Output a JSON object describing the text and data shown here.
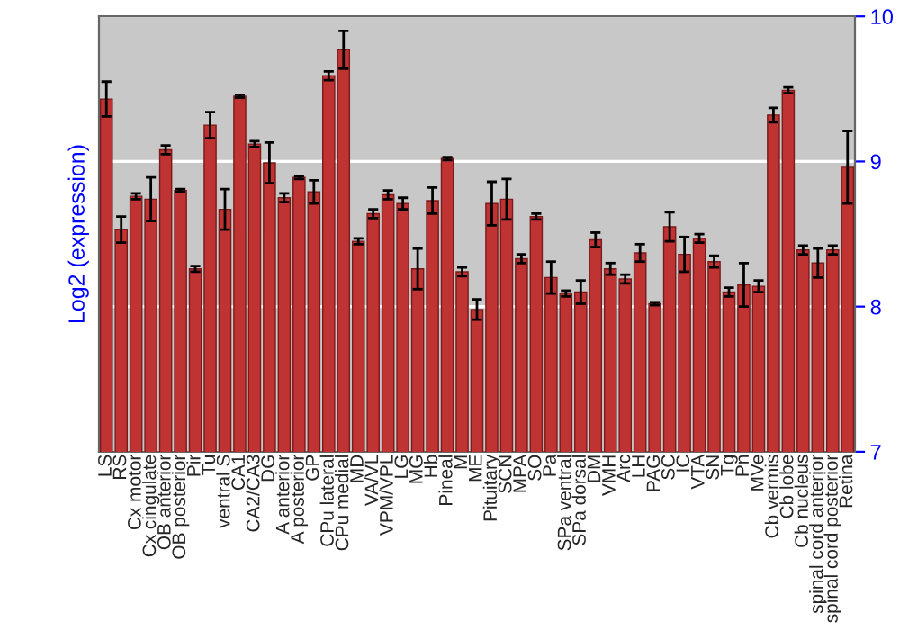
{
  "chart_data": {
    "type": "bar",
    "ylabel": "Log2 (expression)",
    "categories": [
      "LS",
      "RS",
      "Cx motor",
      "Cx cingulate",
      "OB anterior",
      "OB posterior",
      "Pir",
      "Tu",
      "ventral S",
      "CA1",
      "CA2/CA3",
      "DG",
      "A anterior",
      "A posterior",
      "GP",
      "CPu lateral",
      "CPu medial",
      "MD",
      "VA/VL",
      "VPM/VPL",
      "LG",
      "MG",
      "Hb",
      "Pineal",
      "M",
      "ME",
      "Pituitary",
      "SCN",
      "MPA",
      "SO",
      "Pa",
      "SPa ventral",
      "SPa dorsal",
      "DM",
      "VMH",
      "Arc",
      "LH",
      "PAG",
      "SC",
      "IC",
      "VTA",
      "SN",
      "Tg",
      "Pn",
      "MVe",
      "Cb vermis",
      "Cb lobe",
      "Cb nucleus",
      "spinal cord anterior",
      "spinal cord posterior",
      "Retina"
    ],
    "values": [
      9.43,
      8.53,
      8.76,
      8.74,
      9.08,
      8.8,
      8.26,
      9.25,
      8.67,
      9.45,
      9.12,
      8.99,
      8.75,
      8.89,
      8.79,
      9.59,
      9.77,
      8.45,
      8.64,
      8.77,
      8.71,
      8.26,
      8.73,
      9.02,
      8.24,
      7.98,
      8.71,
      8.74,
      8.33,
      8.62,
      8.2,
      8.09,
      8.1,
      8.46,
      8.26,
      8.19,
      8.37,
      8.02,
      8.55,
      8.36,
      8.47,
      8.31,
      8.1,
      8.15,
      8.14,
      9.32,
      9.49,
      8.39,
      8.3,
      8.39,
      8.96
    ],
    "errors": [
      0.12,
      0.09,
      0.02,
      0.15,
      0.03,
      0.01,
      0.02,
      0.09,
      0.14,
      0.01,
      0.02,
      0.14,
      0.03,
      0.01,
      0.08,
      0.03,
      0.13,
      0.02,
      0.03,
      0.03,
      0.04,
      0.14,
      0.09,
      0.01,
      0.03,
      0.07,
      0.15,
      0.14,
      0.03,
      0.02,
      0.11,
      0.02,
      0.08,
      0.05,
      0.04,
      0.03,
      0.06,
      0.01,
      0.1,
      0.12,
      0.03,
      0.04,
      0.03,
      0.15,
      0.04,
      0.05,
      0.02,
      0.03,
      0.1,
      0.03,
      0.25
    ],
    "color": "#c03333",
    "ylim": [
      7,
      10
    ],
    "yticks": [
      7,
      8,
      9,
      10
    ],
    "grid": "y"
  }
}
